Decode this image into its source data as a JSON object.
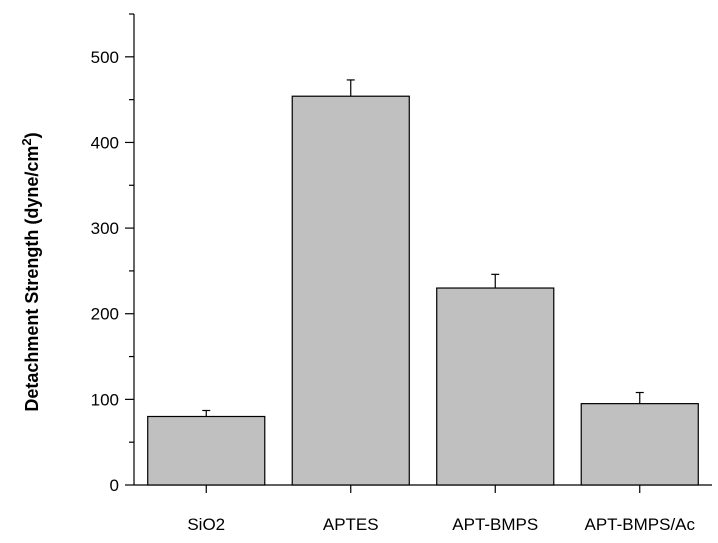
{
  "chart_data": {
    "type": "bar",
    "title": "",
    "xlabel": "",
    "ylabel": "Detachment Strength (dyne/cm",
    "ylabel_superscript": "2",
    "ylabel_suffix": ")",
    "categories": [
      "SiO2",
      "APTES",
      "APT-BMPS",
      "APT-BMPS/Ac"
    ],
    "values": [
      80,
      454,
      230,
      95
    ],
    "error_plus": [
      7,
      19,
      16,
      13
    ],
    "ylim": [
      0,
      550
    ],
    "yticks": [
      0,
      100,
      200,
      300,
      400,
      500
    ],
    "grid": false,
    "colors": {
      "bar_fill": "#c0c0c0",
      "bar_stroke": "#000000",
      "axis": "#000000"
    }
  }
}
